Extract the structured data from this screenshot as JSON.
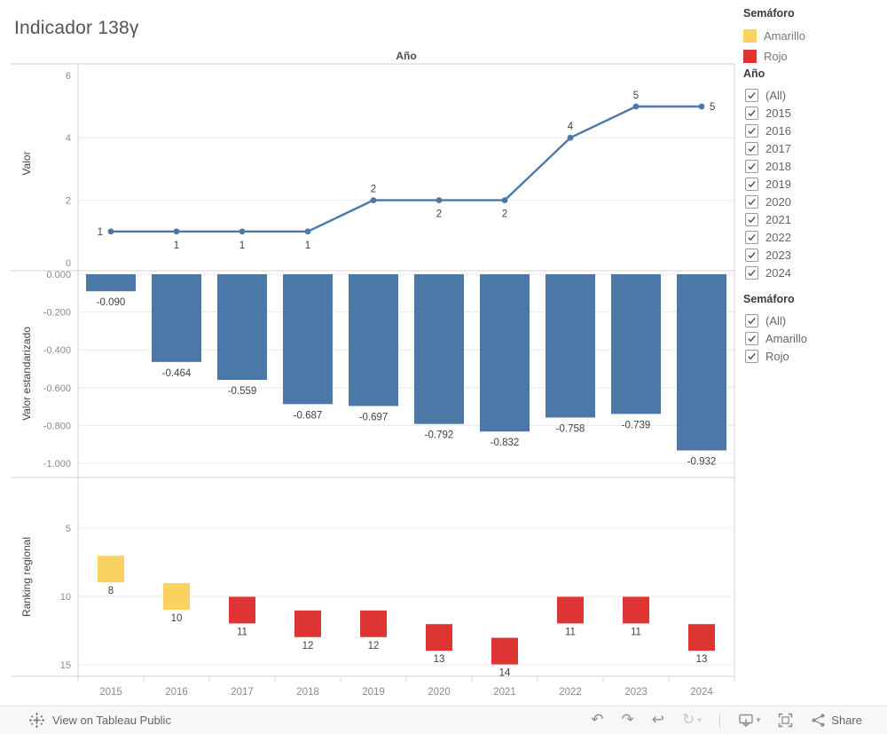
{
  "page": {
    "title": "Indicador 138γ"
  },
  "chart_data": [
    {
      "type": "line",
      "title": "Año",
      "ylabel": "Valor",
      "categories": [
        "2015",
        "2016",
        "2017",
        "2018",
        "2019",
        "2020",
        "2021",
        "2022",
        "2023",
        "2024"
      ],
      "values": [
        1,
        1,
        1,
        1,
        2,
        2,
        2,
        4,
        5,
        5
      ],
      "point_labels": [
        "1",
        "1",
        "1",
        "1",
        "2",
        "2",
        "2",
        "4",
        "5",
        "5"
      ],
      "label_positions": [
        "left",
        "below",
        "below",
        "below",
        "above",
        "below",
        "below",
        "above",
        "above",
        "right"
      ],
      "yticks": [
        0,
        2,
        4,
        6
      ],
      "ylim": [
        0,
        6.3
      ],
      "grid": true,
      "legend_position": "none",
      "color": "#4C78A8"
    },
    {
      "type": "bar",
      "title": "",
      "ylabel": "Valor estandarizado",
      "categories": [
        "2015",
        "2016",
        "2017",
        "2018",
        "2019",
        "2020",
        "2021",
        "2022",
        "2023",
        "2024"
      ],
      "values": [
        -0.09,
        -0.464,
        -0.559,
        -0.687,
        -0.697,
        -0.792,
        -0.832,
        -0.758,
        -0.739,
        -0.932
      ],
      "bar_labels": [
        "-0.090",
        "-0.464",
        "-0.559",
        "-0.687",
        "-0.697",
        "-0.792",
        "-0.832",
        "-0.758",
        "-0.739",
        "-0.932"
      ],
      "ytick_labels": [
        "0.000",
        "-0.200",
        "-0.400",
        "-0.600",
        "-0.800",
        "-1.000"
      ],
      "yticks": [
        0,
        -0.2,
        -0.4,
        -0.6,
        -0.8,
        -1.0
      ],
      "ylim": [
        0,
        -1.05
      ],
      "grid": true,
      "color": "#4C78A8"
    },
    {
      "type": "scatter",
      "marker": "square",
      "title": "",
      "ylabel": "Ranking regional",
      "categories": [
        "2015",
        "2016",
        "2017",
        "2018",
        "2019",
        "2020",
        "2021",
        "2022",
        "2023",
        "2024"
      ],
      "values": [
        8,
        10,
        11,
        12,
        12,
        13,
        14,
        11,
        11,
        13
      ],
      "point_labels": [
        "8",
        "10",
        "11",
        "12",
        "12",
        "13",
        "14",
        "11",
        "11",
        "13"
      ],
      "series_color_key": [
        "Amarillo",
        "Amarillo",
        "Rojo",
        "Rojo",
        "Rojo",
        "Rojo",
        "Rojo",
        "Rojo",
        "Rojo",
        "Rojo"
      ],
      "palette": {
        "Amarillo": "#F9D25F",
        "Rojo": "#DE3434"
      },
      "yticks": [
        5,
        10,
        15
      ],
      "ylim": [
        1.5,
        16
      ],
      "y_inverted": true,
      "grid": true
    }
  ],
  "legend": {
    "title": "Semáforo",
    "items": [
      {
        "label": "Amarillo",
        "color": "#F9D25F"
      },
      {
        "label": "Rojo",
        "color": "#DE3434"
      }
    ]
  },
  "filters": {
    "ano": {
      "title": "Año",
      "options": [
        "(All)",
        "2015",
        "2016",
        "2017",
        "2018",
        "2019",
        "2020",
        "2021",
        "2022",
        "2023",
        "2024"
      ],
      "checked": [
        true,
        true,
        true,
        true,
        true,
        true,
        true,
        true,
        true,
        true,
        true
      ]
    },
    "semaforo": {
      "title": "Semáforo",
      "options": [
        "(All)",
        "Amarillo",
        "Rojo"
      ],
      "checked": [
        true,
        true,
        true
      ]
    }
  },
  "toolbar": {
    "view_label": "View on Tableau Public",
    "share_label": "Share",
    "glyphs": {
      "undo": "↶",
      "redo": "↷",
      "revert": "↩",
      "refresh": "↻",
      "caret": "▾"
    }
  },
  "colors": {
    "accent_blue": "#4C78A8",
    "grid": "#ececec",
    "border": "#d4d4d4",
    "tick_text": "#8a8a8a",
    "label_text": "#424242"
  }
}
